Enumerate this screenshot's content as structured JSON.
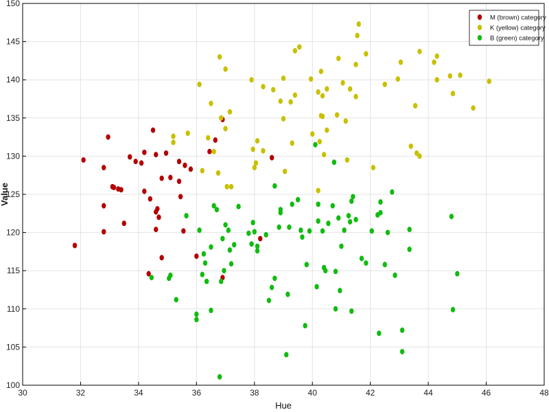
{
  "chart_data": {
    "type": "scatter",
    "xlabel": "Hue",
    "ylabel": "Value",
    "xlim": [
      30,
      48
    ],
    "ylim": [
      100,
      150
    ],
    "xticks": [
      30,
      32,
      34,
      36,
      38,
      40,
      42,
      44,
      46,
      48
    ],
    "yticks": [
      100,
      105,
      110,
      115,
      120,
      125,
      130,
      135,
      140,
      145,
      150
    ],
    "grid": true,
    "legend_position": "top-right",
    "series": [
      {
        "name": "M (brown) category",
        "color": "#b30000",
        "points": [
          [
            31.8,
            118.3
          ],
          [
            32.1,
            129.5
          ],
          [
            32.8,
            128.5
          ],
          [
            32.8,
            123.5
          ],
          [
            32.8,
            120.1
          ],
          [
            32.95,
            132.5
          ],
          [
            33.1,
            126.0
          ],
          [
            33.15,
            125.9
          ],
          [
            33.3,
            125.7
          ],
          [
            33.4,
            125.6
          ],
          [
            33.5,
            121.2
          ],
          [
            33.7,
            129.9
          ],
          [
            33.9,
            129.3
          ],
          [
            34.1,
            129.1
          ],
          [
            34.2,
            130.5
          ],
          [
            34.2,
            125.4
          ],
          [
            34.4,
            124.4
          ],
          [
            34.35,
            114.6
          ],
          [
            34.5,
            133.4
          ],
          [
            34.6,
            130.2
          ],
          [
            34.6,
            122.7
          ],
          [
            34.65,
            123.1
          ],
          [
            34.6,
            120.4
          ],
          [
            34.7,
            122.0
          ],
          [
            34.8,
            116.7
          ],
          [
            34.8,
            127.1
          ],
          [
            34.95,
            130.4
          ],
          [
            35.1,
            127.2
          ],
          [
            35.4,
            129.3
          ],
          [
            35.4,
            126.7
          ],
          [
            35.45,
            124.7
          ],
          [
            35.55,
            120.2
          ],
          [
            35.6,
            128.8
          ],
          [
            35.8,
            128.3
          ],
          [
            36.0,
            116.9
          ],
          [
            36.45,
            130.6
          ],
          [
            36.65,
            132.1
          ],
          [
            36.9,
            134.8
          ],
          [
            36.9,
            114.1
          ],
          [
            38.2,
            119.2
          ],
          [
            38.6,
            129.8
          ]
        ]
      },
      {
        "name": "K (yellow) category",
        "color": "#c8c000",
        "points": [
          [
            35.2,
            131.8
          ],
          [
            35.2,
            132.6
          ],
          [
            35.7,
            133.0
          ],
          [
            36.1,
            139.4
          ],
          [
            36.2,
            128.1
          ],
          [
            36.4,
            132.4
          ],
          [
            36.5,
            136.9
          ],
          [
            36.6,
            130.6
          ],
          [
            36.75,
            127.8
          ],
          [
            36.8,
            143.0
          ],
          [
            36.85,
            135.0
          ],
          [
            37.0,
            141.4
          ],
          [
            37.0,
            133.6
          ],
          [
            37.05,
            126.0
          ],
          [
            37.15,
            135.8
          ],
          [
            37.2,
            126.0
          ],
          [
            37.9,
            140.0
          ],
          [
            37.95,
            130.9
          ],
          [
            38.0,
            128.5
          ],
          [
            38.05,
            129.1
          ],
          [
            38.1,
            132.0
          ],
          [
            38.3,
            130.7
          ],
          [
            38.3,
            139.1
          ],
          [
            38.65,
            138.7
          ],
          [
            38.9,
            137.2
          ],
          [
            39.0,
            140.2
          ],
          [
            39.0,
            134.9
          ],
          [
            39.05,
            128.0
          ],
          [
            39.25,
            137.1
          ],
          [
            39.3,
            131.7
          ],
          [
            39.4,
            138.0
          ],
          [
            39.4,
            143.8
          ],
          [
            39.55,
            144.3
          ],
          [
            39.95,
            140.1
          ],
          [
            40.0,
            132.9
          ],
          [
            40.2,
            138.4
          ],
          [
            40.2,
            125.5
          ],
          [
            40.25,
            131.9
          ],
          [
            40.3,
            135.3
          ],
          [
            40.3,
            141.1
          ],
          [
            40.35,
            135.2
          ],
          [
            40.35,
            137.9
          ],
          [
            40.4,
            130.2
          ],
          [
            40.5,
            138.8
          ],
          [
            40.5,
            133.4
          ],
          [
            40.85,
            135.4
          ],
          [
            40.9,
            142.8
          ],
          [
            41.05,
            139.6
          ],
          [
            41.15,
            134.6
          ],
          [
            41.2,
            129.5
          ],
          [
            41.3,
            138.8
          ],
          [
            41.5,
            142.0
          ],
          [
            41.5,
            137.8
          ],
          [
            41.55,
            145.8
          ],
          [
            41.6,
            147.3
          ],
          [
            41.85,
            143.4
          ],
          [
            42.1,
            128.5
          ],
          [
            42.5,
            139.4
          ],
          [
            42.95,
            140.1
          ],
          [
            43.05,
            142.3
          ],
          [
            43.4,
            131.3
          ],
          [
            43.55,
            136.6
          ],
          [
            43.6,
            130.4
          ],
          [
            43.7,
            143.7
          ],
          [
            43.7,
            130.0
          ],
          [
            44.2,
            142.3
          ],
          [
            44.3,
            140.0
          ],
          [
            44.3,
            143.1
          ],
          [
            44.75,
            140.5
          ],
          [
            44.85,
            138.2
          ],
          [
            45.1,
            140.6
          ],
          [
            45.55,
            136.3
          ],
          [
            46.1,
            139.8
          ]
        ]
      },
      {
        "name": "B (green) category",
        "color": "#11bb11",
        "points": [
          [
            34.45,
            114.1
          ],
          [
            35.05,
            114.0
          ],
          [
            35.1,
            114.4
          ],
          [
            35.3,
            111.2
          ],
          [
            35.65,
            122.2
          ],
          [
            36.0,
            109.3
          ],
          [
            36.0,
            108.6
          ],
          [
            36.1,
            120.3
          ],
          [
            36.2,
            114.5
          ],
          [
            36.25,
            117.2
          ],
          [
            36.3,
            116.0
          ],
          [
            36.35,
            113.6
          ],
          [
            36.5,
            118.1
          ],
          [
            36.5,
            109.8
          ],
          [
            36.6,
            123.5
          ],
          [
            36.7,
            123.0
          ],
          [
            36.8,
            101.1
          ],
          [
            36.85,
            113.6
          ],
          [
            36.9,
            119.2
          ],
          [
            36.95,
            115.0
          ],
          [
            37.0,
            121.0
          ],
          [
            37.1,
            120.3
          ],
          [
            37.15,
            117.7
          ],
          [
            37.2,
            115.9
          ],
          [
            37.3,
            118.4
          ],
          [
            37.45,
            123.4
          ],
          [
            37.8,
            119.9
          ],
          [
            37.9,
            118.5
          ],
          [
            37.95,
            121.3
          ],
          [
            38.0,
            120.1
          ],
          [
            38.1,
            117.6
          ],
          [
            38.1,
            118.2
          ],
          [
            38.4,
            119.7
          ],
          [
            38.5,
            111.1
          ],
          [
            38.6,
            112.8
          ],
          [
            38.7,
            114.0
          ],
          [
            38.7,
            126.1
          ],
          [
            38.85,
            120.7
          ],
          [
            38.9,
            123.0
          ],
          [
            38.9,
            122.6
          ],
          [
            39.1,
            104.0
          ],
          [
            39.15,
            111.9
          ],
          [
            39.2,
            120.7
          ],
          [
            39.3,
            123.7
          ],
          [
            39.5,
            124.3
          ],
          [
            39.6,
            120.3
          ],
          [
            39.65,
            119.4
          ],
          [
            39.75,
            107.8
          ],
          [
            39.8,
            115.8
          ],
          [
            39.9,
            120.2
          ],
          [
            40.1,
            131.5
          ],
          [
            40.15,
            112.9
          ],
          [
            40.2,
            121.5
          ],
          [
            40.2,
            123.7
          ],
          [
            40.35,
            120.2
          ],
          [
            40.4,
            115.4
          ],
          [
            40.45,
            115.0
          ],
          [
            40.55,
            121.2
          ],
          [
            40.7,
            123.5
          ],
          [
            40.75,
            129.2
          ],
          [
            40.8,
            114.9
          ],
          [
            40.8,
            110.0
          ],
          [
            40.9,
            121.9
          ],
          [
            40.95,
            112.4
          ],
          [
            41.0,
            118.2
          ],
          [
            41.1,
            120.3
          ],
          [
            41.25,
            122.2
          ],
          [
            41.3,
            121.4
          ],
          [
            41.35,
            109.7
          ],
          [
            41.35,
            124.1
          ],
          [
            41.4,
            124.7
          ],
          [
            41.5,
            121.7
          ],
          [
            41.7,
            116.6
          ],
          [
            41.85,
            116.0
          ],
          [
            42.05,
            120.2
          ],
          [
            42.25,
            122.3
          ],
          [
            42.3,
            106.8
          ],
          [
            42.35,
            122.6
          ],
          [
            42.35,
            124.0
          ],
          [
            42.5,
            115.8
          ],
          [
            42.6,
            120.0
          ],
          [
            42.75,
            125.3
          ],
          [
            42.85,
            114.4
          ],
          [
            43.1,
            107.2
          ],
          [
            43.1,
            104.4
          ],
          [
            43.35,
            120.4
          ],
          [
            43.35,
            117.8
          ],
          [
            44.8,
            122.1
          ],
          [
            44.85,
            109.9
          ],
          [
            45.0,
            114.6
          ]
        ]
      }
    ]
  }
}
